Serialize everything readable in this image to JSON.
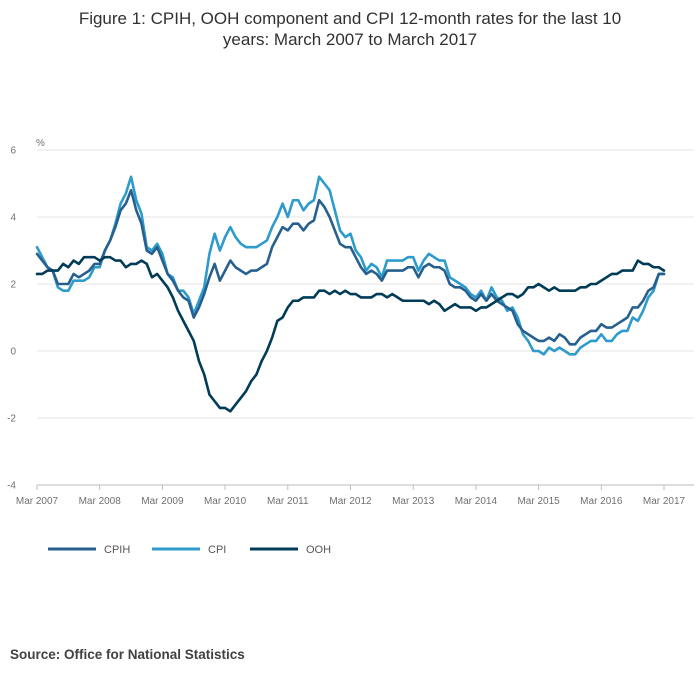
{
  "title_lines": [
    "Figure 1: CPIH, OOH component and CPI 12-month rates for the last 10",
    "years: March 2007 to March 2017"
  ],
  "source": "Source: Office for National Statistics",
  "chart_data": {
    "type": "line",
    "title": "Figure 1: CPIH, OOH component and CPI 12-month rates for the last 10 years: March 2007 to March 2017",
    "ylabel": "%",
    "ylim": [
      -4,
      6
    ],
    "yticks": [
      6,
      4,
      2,
      0,
      -2,
      -4
    ],
    "xlim": [
      0,
      120
    ],
    "xticks": [
      {
        "label": "Mar 2007",
        "x": 0
      },
      {
        "label": "Mar 2008",
        "x": 12
      },
      {
        "label": "Mar 2009",
        "x": 24
      },
      {
        "label": "Mar 2010",
        "x": 36
      },
      {
        "label": "Mar 2011",
        "x": 48
      },
      {
        "label": "Mar 2012",
        "x": 60
      },
      {
        "label": "Mar 2013",
        "x": 72
      },
      {
        "label": "Mar 2014",
        "x": 84
      },
      {
        "label": "Mar 2015",
        "x": 96
      },
      {
        "label": "Mar 2016",
        "x": 108
      },
      {
        "label": "Mar 2017",
        "x": 120
      }
    ],
    "grid": true,
    "legend_position": "bottom-left",
    "series": [
      {
        "name": "CPIH",
        "color": "#27608e",
        "values": [
          2.9,
          2.7,
          2.5,
          2.4,
          2.0,
          2.0,
          2.0,
          2.3,
          2.2,
          2.3,
          2.4,
          2.6,
          2.6,
          3.0,
          3.3,
          3.7,
          4.2,
          4.4,
          4.8,
          4.2,
          3.8,
          3.0,
          2.9,
          3.1,
          2.7,
          2.3,
          2.1,
          1.8,
          1.6,
          1.5,
          1.0,
          1.3,
          1.7,
          2.2,
          2.6,
          2.1,
          2.4,
          2.7,
          2.5,
          2.4,
          2.3,
          2.4,
          2.4,
          2.5,
          2.6,
          3.1,
          3.4,
          3.7,
          3.6,
          3.8,
          3.8,
          3.6,
          3.8,
          3.9,
          4.5,
          4.3,
          4.0,
          3.6,
          3.2,
          3.1,
          3.1,
          2.8,
          2.5,
          2.3,
          2.4,
          2.3,
          2.1,
          2.4,
          2.4,
          2.4,
          2.4,
          2.5,
          2.5,
          2.2,
          2.5,
          2.6,
          2.5,
          2.5,
          2.4,
          2.0,
          1.9,
          1.9,
          1.8,
          1.6,
          1.5,
          1.7,
          1.5,
          1.7,
          1.5,
          1.4,
          1.3,
          1.2,
          0.8,
          0.6,
          0.5,
          0.4,
          0.3,
          0.3,
          0.4,
          0.3,
          0.5,
          0.4,
          0.2,
          0.2,
          0.4,
          0.5,
          0.6,
          0.6,
          0.8,
          0.7,
          0.7,
          0.8,
          0.9,
          1.0,
          1.3,
          1.3,
          1.5,
          1.8,
          1.9,
          2.3,
          2.3
        ]
      },
      {
        "name": "CPI",
        "color": "#2d9bcb",
        "values": [
          3.1,
          2.8,
          2.5,
          2.4,
          1.9,
          1.8,
          1.8,
          2.1,
          2.1,
          2.1,
          2.2,
          2.5,
          2.5,
          3.0,
          3.3,
          3.8,
          4.4,
          4.7,
          5.2,
          4.5,
          4.1,
          3.1,
          3.0,
          3.2,
          2.9,
          2.3,
          2.2,
          1.8,
          1.8,
          1.6,
          1.1,
          1.5,
          1.9,
          2.9,
          3.5,
          3.0,
          3.4,
          3.7,
          3.4,
          3.2,
          3.1,
          3.1,
          3.1,
          3.2,
          3.3,
          3.7,
          4.0,
          4.4,
          4.0,
          4.5,
          4.5,
          4.2,
          4.4,
          4.5,
          5.2,
          5.0,
          4.8,
          4.2,
          3.6,
          3.4,
          3.5,
          3.0,
          2.8,
          2.4,
          2.6,
          2.5,
          2.2,
          2.7,
          2.7,
          2.7,
          2.7,
          2.8,
          2.8,
          2.4,
          2.7,
          2.9,
          2.8,
          2.7,
          2.7,
          2.2,
          2.1,
          2.0,
          1.9,
          1.7,
          1.6,
          1.8,
          1.5,
          1.9,
          1.6,
          1.5,
          1.2,
          1.3,
          1.0,
          0.5,
          0.3,
          0.0,
          0.0,
          -0.1,
          0.1,
          0.0,
          0.1,
          0.0,
          -0.1,
          -0.1,
          0.1,
          0.2,
          0.3,
          0.3,
          0.5,
          0.3,
          0.3,
          0.5,
          0.6,
          0.6,
          1.0,
          0.9,
          1.2,
          1.6,
          1.8,
          2.3,
          2.3
        ]
      },
      {
        "name": "OOH",
        "color": "#003c57",
        "values": [
          2.3,
          2.3,
          2.4,
          2.4,
          2.4,
          2.6,
          2.5,
          2.7,
          2.6,
          2.8,
          2.8,
          2.8,
          2.7,
          2.8,
          2.8,
          2.7,
          2.7,
          2.5,
          2.6,
          2.6,
          2.7,
          2.6,
          2.2,
          2.3,
          2.1,
          1.9,
          1.6,
          1.2,
          0.9,
          0.6,
          0.3,
          -0.3,
          -0.7,
          -1.3,
          -1.5,
          -1.7,
          -1.7,
          -1.8,
          -1.6,
          -1.4,
          -1.2,
          -0.9,
          -0.7,
          -0.3,
          0.0,
          0.4,
          0.9,
          1.0,
          1.3,
          1.5,
          1.5,
          1.6,
          1.6,
          1.6,
          1.8,
          1.8,
          1.7,
          1.8,
          1.7,
          1.8,
          1.7,
          1.7,
          1.6,
          1.6,
          1.6,
          1.7,
          1.7,
          1.6,
          1.7,
          1.6,
          1.5,
          1.5,
          1.5,
          1.5,
          1.5,
          1.4,
          1.5,
          1.4,
          1.2,
          1.3,
          1.4,
          1.3,
          1.3,
          1.3,
          1.2,
          1.3,
          1.3,
          1.4,
          1.5,
          1.6,
          1.7,
          1.7,
          1.6,
          1.7,
          1.9,
          1.9,
          2.0,
          1.9,
          1.8,
          1.9,
          1.8,
          1.8,
          1.8,
          1.8,
          1.9,
          1.9,
          2.0,
          2.0,
          2.1,
          2.2,
          2.3,
          2.3,
          2.4,
          2.4,
          2.4,
          2.7,
          2.6,
          2.6,
          2.5,
          2.5,
          2.4
        ]
      }
    ]
  }
}
